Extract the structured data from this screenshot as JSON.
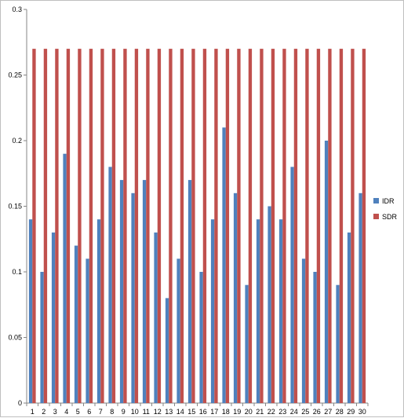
{
  "chart_data": {
    "type": "bar",
    "title": "",
    "xlabel": "",
    "ylabel": "",
    "ylim": [
      0,
      0.3
    ],
    "yticks": [
      "0",
      "0.05",
      "0.1",
      "0.15",
      "0.2",
      "0.25",
      "0.3"
    ],
    "grid": false,
    "legend_position": "right",
    "categories": [
      "1",
      "2",
      "3",
      "4",
      "5",
      "6",
      "7",
      "8",
      "9",
      "10",
      "11",
      "12",
      "13",
      "14",
      "15",
      "16",
      "17",
      "18",
      "19",
      "20",
      "21",
      "22",
      "23",
      "24",
      "25",
      "26",
      "27",
      "28",
      "29",
      "30"
    ],
    "series": [
      {
        "name": "IDR",
        "color": "#4F81BD",
        "values": [
          0.14,
          0.1,
          0.13,
          0.19,
          0.12,
          0.11,
          0.14,
          0.18,
          0.17,
          0.16,
          0.17,
          0.13,
          0.08,
          0.11,
          0.17,
          0.1,
          0.14,
          0.21,
          0.16,
          0.09,
          0.14,
          0.15,
          0.14,
          0.18,
          0.11,
          0.1,
          0.2,
          0.09,
          0.13,
          0.16
        ]
      },
      {
        "name": "SDR",
        "color": "#C0504D",
        "values": [
          0.27,
          0.27,
          0.27,
          0.27,
          0.27,
          0.27,
          0.27,
          0.27,
          0.27,
          0.27,
          0.27,
          0.27,
          0.27,
          0.27,
          0.27,
          0.27,
          0.27,
          0.27,
          0.27,
          0.27,
          0.27,
          0.27,
          0.27,
          0.27,
          0.27,
          0.27,
          0.27,
          0.27,
          0.27,
          0.27
        ]
      }
    ]
  }
}
